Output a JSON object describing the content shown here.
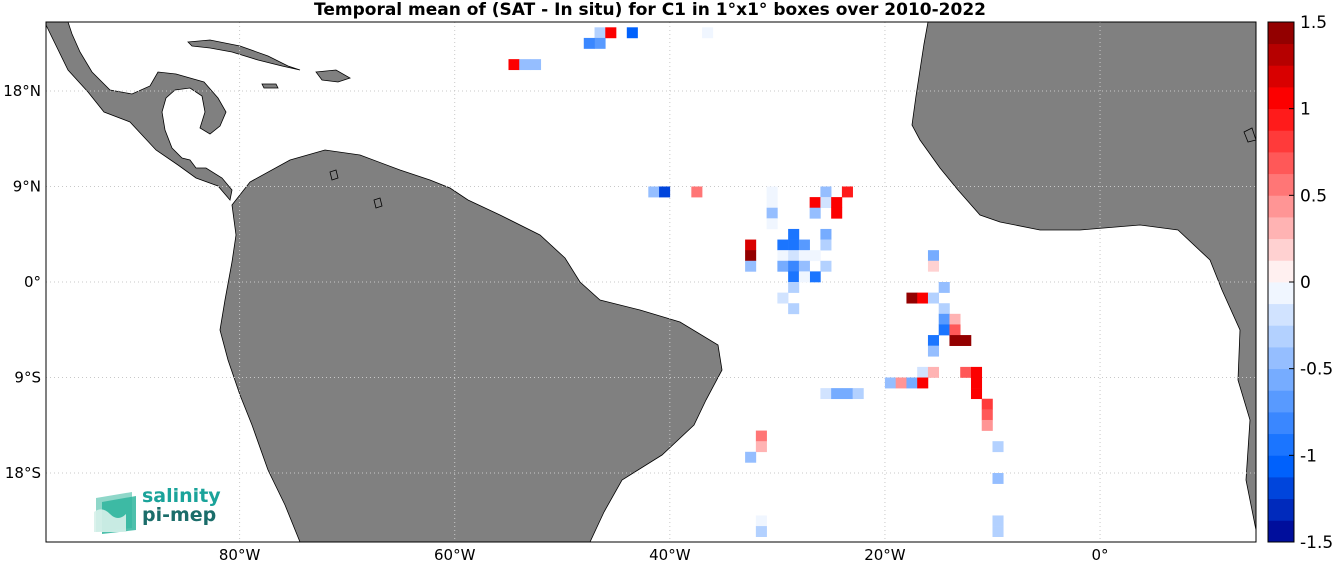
{
  "title": "Temporal mean of (SAT - In situ) for C1 in 1°x1° boxes over 2010-2022",
  "axes": {
    "lon_range": [
      -98,
      14.5
    ],
    "lat_range": [
      -24.5,
      24.5
    ],
    "x_ticks": [
      {
        "lon": -80,
        "label": "80°W"
      },
      {
        "lon": -60,
        "label": "60°W"
      },
      {
        "lon": -40,
        "label": "40°W"
      },
      {
        "lon": -20,
        "label": "20°W"
      },
      {
        "lon": 0,
        "label": "0°"
      }
    ],
    "y_ticks": [
      {
        "lat": 18,
        "label": "18°N"
      },
      {
        "lat": 9,
        "label": "9°N"
      },
      {
        "lat": 0,
        "label": "0°"
      },
      {
        "lat": -9,
        "label": "9°S"
      },
      {
        "lat": -18,
        "label": "18°S"
      }
    ],
    "grid": true
  },
  "colorbar": {
    "min": -1.5,
    "max": 1.5,
    "ticks": [
      {
        "value": 1.5,
        "label": "1.5"
      },
      {
        "value": 1,
        "label": "1"
      },
      {
        "value": 0.5,
        "label": "0.5"
      },
      {
        "value": 0,
        "label": "0"
      },
      {
        "value": -0.5,
        "label": "-0.5"
      },
      {
        "value": -1,
        "label": "-1"
      },
      {
        "value": -1.5,
        "label": "-1.5"
      }
    ]
  },
  "colors": {
    "land": "#808080",
    "coast": "#000000",
    "grid": "#c8c8c8"
  },
  "logo": {
    "line1": "salinity",
    "line2": "pi-mep"
  },
  "chart_data": {
    "type": "heatmap",
    "title": "Temporal mean of (SAT - In situ) for C1 in 1°x1° boxes over 2010-2022",
    "xlabel": "",
    "ylabel": "",
    "x_unit": "longitude (degrees east)",
    "y_unit": "latitude (degrees north)",
    "value_range": [
      -1.5,
      1.5
    ],
    "cells": [
      {
        "lon": -46.5,
        "lat": 23.5,
        "value": -0.3
      },
      {
        "lon": -45.5,
        "lat": 23.5,
        "value": 1.0
      },
      {
        "lon": -43.5,
        "lat": 23.5,
        "value": -1.1
      },
      {
        "lon": -46.5,
        "lat": 22.5,
        "value": -0.7
      },
      {
        "lon": -47.5,
        "lat": 22.5,
        "value": -0.8
      },
      {
        "lon": -36.5,
        "lat": 23.5,
        "value": -0.1
      },
      {
        "lon": -54.5,
        "lat": 20.5,
        "value": 1.0
      },
      {
        "lon": -53.5,
        "lat": 20.5,
        "value": -0.4
      },
      {
        "lon": -52.5,
        "lat": 20.5,
        "value": -0.5
      },
      {
        "lon": -41.5,
        "lat": 8.5,
        "value": -0.4
      },
      {
        "lon": -40.5,
        "lat": 8.5,
        "value": -1.2
      },
      {
        "lon": -37.5,
        "lat": 8.5,
        "value": 0.6
      },
      {
        "lon": -30.5,
        "lat": 8.5,
        "value": -0.1
      },
      {
        "lon": -25.5,
        "lat": 8.5,
        "value": -0.5
      },
      {
        "lon": -23.5,
        "lat": 8.5,
        "value": 0.9
      },
      {
        "lon": -30.5,
        "lat": 7.5,
        "value": -0.1
      },
      {
        "lon": -26.5,
        "lat": 7.5,
        "value": 1.1
      },
      {
        "lon": -25.5,
        "lat": 7.5,
        "value": -0.2
      },
      {
        "lon": -24.5,
        "lat": 7.5,
        "value": 1.0
      },
      {
        "lon": -30.5,
        "lat": 6.5,
        "value": -0.4
      },
      {
        "lon": -26.5,
        "lat": 6.5,
        "value": -0.5
      },
      {
        "lon": -24.5,
        "lat": 6.5,
        "value": 1.1
      },
      {
        "lon": -30.5,
        "lat": 5.5,
        "value": -0.1
      },
      {
        "lon": -28.5,
        "lat": 4.5,
        "value": -0.9
      },
      {
        "lon": -25.5,
        "lat": 4.5,
        "value": -0.6
      },
      {
        "lon": -32.5,
        "lat": 3.5,
        "value": 1.2
      },
      {
        "lon": -29.5,
        "lat": 3.5,
        "value": -1.0
      },
      {
        "lon": -28.5,
        "lat": 3.5,
        "value": -0.9
      },
      {
        "lon": -27.5,
        "lat": 3.5,
        "value": -0.7
      },
      {
        "lon": -25.5,
        "lat": 3.5,
        "value": -0.3
      },
      {
        "lon": -32.5,
        "lat": 2.5,
        "value": 1.4
      },
      {
        "lon": -29.5,
        "lat": 2.5,
        "value": -0.1
      },
      {
        "lon": -28.5,
        "lat": 2.5,
        "value": -0.2
      },
      {
        "lon": -27.5,
        "lat": 2.5,
        "value": -0.1
      },
      {
        "lon": -26.5,
        "lat": 2.5,
        "value": -0.1
      },
      {
        "lon": -15.5,
        "lat": 2.5,
        "value": -0.6
      },
      {
        "lon": -32.5,
        "lat": 1.5,
        "value": -0.4
      },
      {
        "lon": -29.5,
        "lat": 1.5,
        "value": -0.6
      },
      {
        "lon": -28.5,
        "lat": 1.5,
        "value": -0.8
      },
      {
        "lon": -27.5,
        "lat": 1.5,
        "value": -0.4
      },
      {
        "lon": -25.5,
        "lat": 1.5,
        "value": -0.3
      },
      {
        "lon": -15.5,
        "lat": 1.5,
        "value": 0.2
      },
      {
        "lon": -28.5,
        "lat": 0.5,
        "value": -1.0
      },
      {
        "lon": -26.5,
        "lat": 0.5,
        "value": -1.0
      },
      {
        "lon": -27.5,
        "lat": 0.5,
        "value": -0.1
      },
      {
        "lon": -28.5,
        "lat": -0.5,
        "value": -0.3
      },
      {
        "lon": -14.5,
        "lat": -0.5,
        "value": -0.5
      },
      {
        "lon": -29.5,
        "lat": -1.5,
        "value": -0.2
      },
      {
        "lon": -17.5,
        "lat": -1.5,
        "value": 1.4
      },
      {
        "lon": -16.5,
        "lat": -1.5,
        "value": 1.0
      },
      {
        "lon": -15.5,
        "lat": -1.5,
        "value": -0.3
      },
      {
        "lon": -28.5,
        "lat": -2.5,
        "value": -0.3
      },
      {
        "lon": -14.5,
        "lat": -2.5,
        "value": -0.3
      },
      {
        "lon": -14.5,
        "lat": -3.5,
        "value": -0.7
      },
      {
        "lon": -13.5,
        "lat": -3.5,
        "value": 0.3
      },
      {
        "lon": -14.5,
        "lat": -4.5,
        "value": -1.0
      },
      {
        "lon": -13.5,
        "lat": -4.5,
        "value": 0.7
      },
      {
        "lon": -15.5,
        "lat": -5.5,
        "value": -1.0
      },
      {
        "lon": -13.5,
        "lat": -5.5,
        "value": 1.4
      },
      {
        "lon": -12.5,
        "lat": -5.5,
        "value": 1.4
      },
      {
        "lon": -15.5,
        "lat": -6.5,
        "value": -0.4
      },
      {
        "lon": -16.5,
        "lat": -8.5,
        "value": -0.2
      },
      {
        "lon": -15.5,
        "lat": -8.5,
        "value": 0.3
      },
      {
        "lon": -12.5,
        "lat": -8.5,
        "value": 0.7
      },
      {
        "lon": -11.5,
        "lat": -8.5,
        "value": 1.0
      },
      {
        "lon": -19.5,
        "lat": -9.5,
        "value": -0.5
      },
      {
        "lon": -18.5,
        "lat": -9.5,
        "value": 0.4
      },
      {
        "lon": -17.5,
        "lat": -9.5,
        "value": -0.6
      },
      {
        "lon": -16.5,
        "lat": -9.5,
        "value": 1.1
      },
      {
        "lon": -11.5,
        "lat": -9.5,
        "value": 1.1
      },
      {
        "lon": -25.5,
        "lat": -10.5,
        "value": -0.2
      },
      {
        "lon": -24.5,
        "lat": -10.5,
        "value": -0.6
      },
      {
        "lon": -23.5,
        "lat": -10.5,
        "value": -0.6
      },
      {
        "lon": -22.5,
        "lat": -10.5,
        "value": -0.3
      },
      {
        "lon": -11.5,
        "lat": -10.5,
        "value": 1.1
      },
      {
        "lon": -10.5,
        "lat": -11.5,
        "value": 0.8
      },
      {
        "lon": -10.5,
        "lat": -12.5,
        "value": 0.7
      },
      {
        "lon": -10.5,
        "lat": -13.5,
        "value": 0.4
      },
      {
        "lon": -31.5,
        "lat": -14.5,
        "value": 0.6
      },
      {
        "lon": -31.5,
        "lat": -15.5,
        "value": 0.3
      },
      {
        "lon": -9.5,
        "lat": -15.5,
        "value": -0.3
      },
      {
        "lon": -32.5,
        "lat": -16.5,
        "value": -0.4
      },
      {
        "lon": -9.5,
        "lat": -18.5,
        "value": -0.5
      },
      {
        "lon": -31.5,
        "lat": -22.5,
        "value": -0.1
      },
      {
        "lon": -31.5,
        "lat": -23.5,
        "value": -0.3
      },
      {
        "lon": -9.5,
        "lat": -22.5,
        "value": -0.3
      },
      {
        "lon": -9.5,
        "lat": -23.5,
        "value": -0.3
      }
    ]
  }
}
